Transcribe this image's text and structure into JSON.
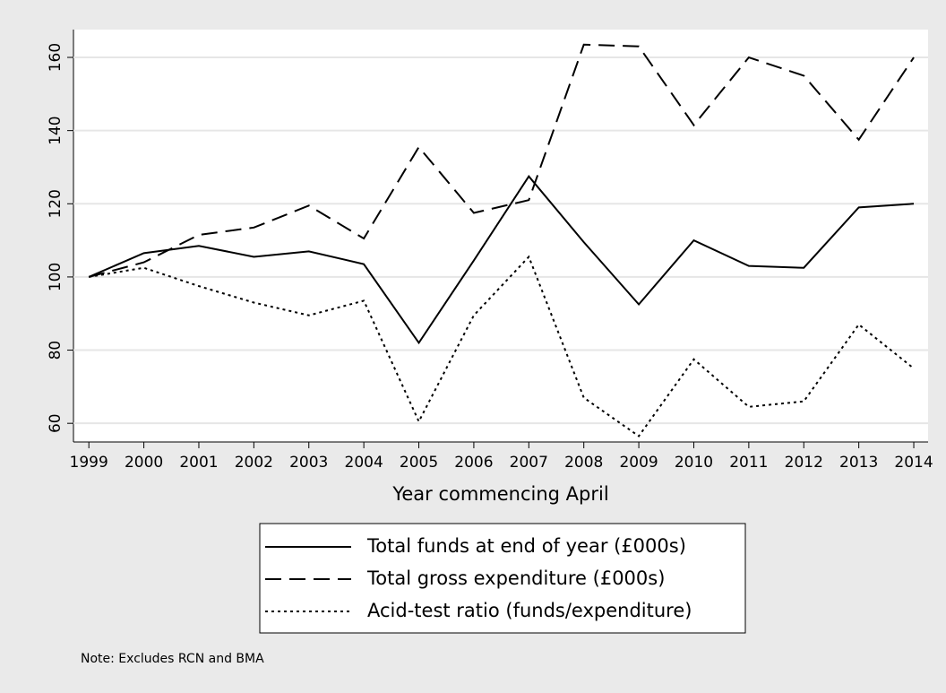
{
  "chart_data": {
    "type": "line",
    "x": [
      1999,
      2000,
      2001,
      2002,
      2003,
      2004,
      2005,
      2006,
      2007,
      2008,
      2009,
      2010,
      2011,
      2012,
      2013,
      2014
    ],
    "xlim": [
      1998.72,
      2014.26
    ],
    "xticks": [
      1999,
      2000,
      2001,
      2002,
      2003,
      2004,
      2005,
      2006,
      2007,
      2008,
      2009,
      2010,
      2011,
      2012,
      2013,
      2014
    ],
    "xlabel": "Year commencing April",
    "ylim": [
      54.9,
      167.6
    ],
    "yticks": [
      60,
      80,
      100,
      120,
      140,
      160
    ],
    "grid": true,
    "series": [
      {
        "name": "Total funds at end of year (£000s)",
        "color": "#000000",
        "style": "solid",
        "values": [
          100,
          106.5,
          108.5,
          105.5,
          107,
          103.5,
          82,
          104.5,
          127.5,
          109.5,
          92.5,
          110,
          103,
          102.5,
          119,
          120
        ]
      },
      {
        "name": "Total gross expenditure (£000s)",
        "color": "#000000",
        "style": "dashed",
        "values": [
          100,
          104,
          111.5,
          113.5,
          119.5,
          110.5,
          135.5,
          117.5,
          121,
          163.5,
          163,
          141.5,
          160,
          155,
          137.5,
          160
        ]
      },
      {
        "name": "Acid-test ratio (funds/expenditure)",
        "color": "#000000",
        "style": "dotted",
        "values": [
          100,
          102.5,
          97.5,
          93,
          89.5,
          93.5,
          60.5,
          89.5,
          105.5,
          67,
          56.5,
          77.5,
          64.5,
          66,
          87,
          75
        ]
      }
    ],
    "note": "Note: Excludes RCN and BMA"
  }
}
